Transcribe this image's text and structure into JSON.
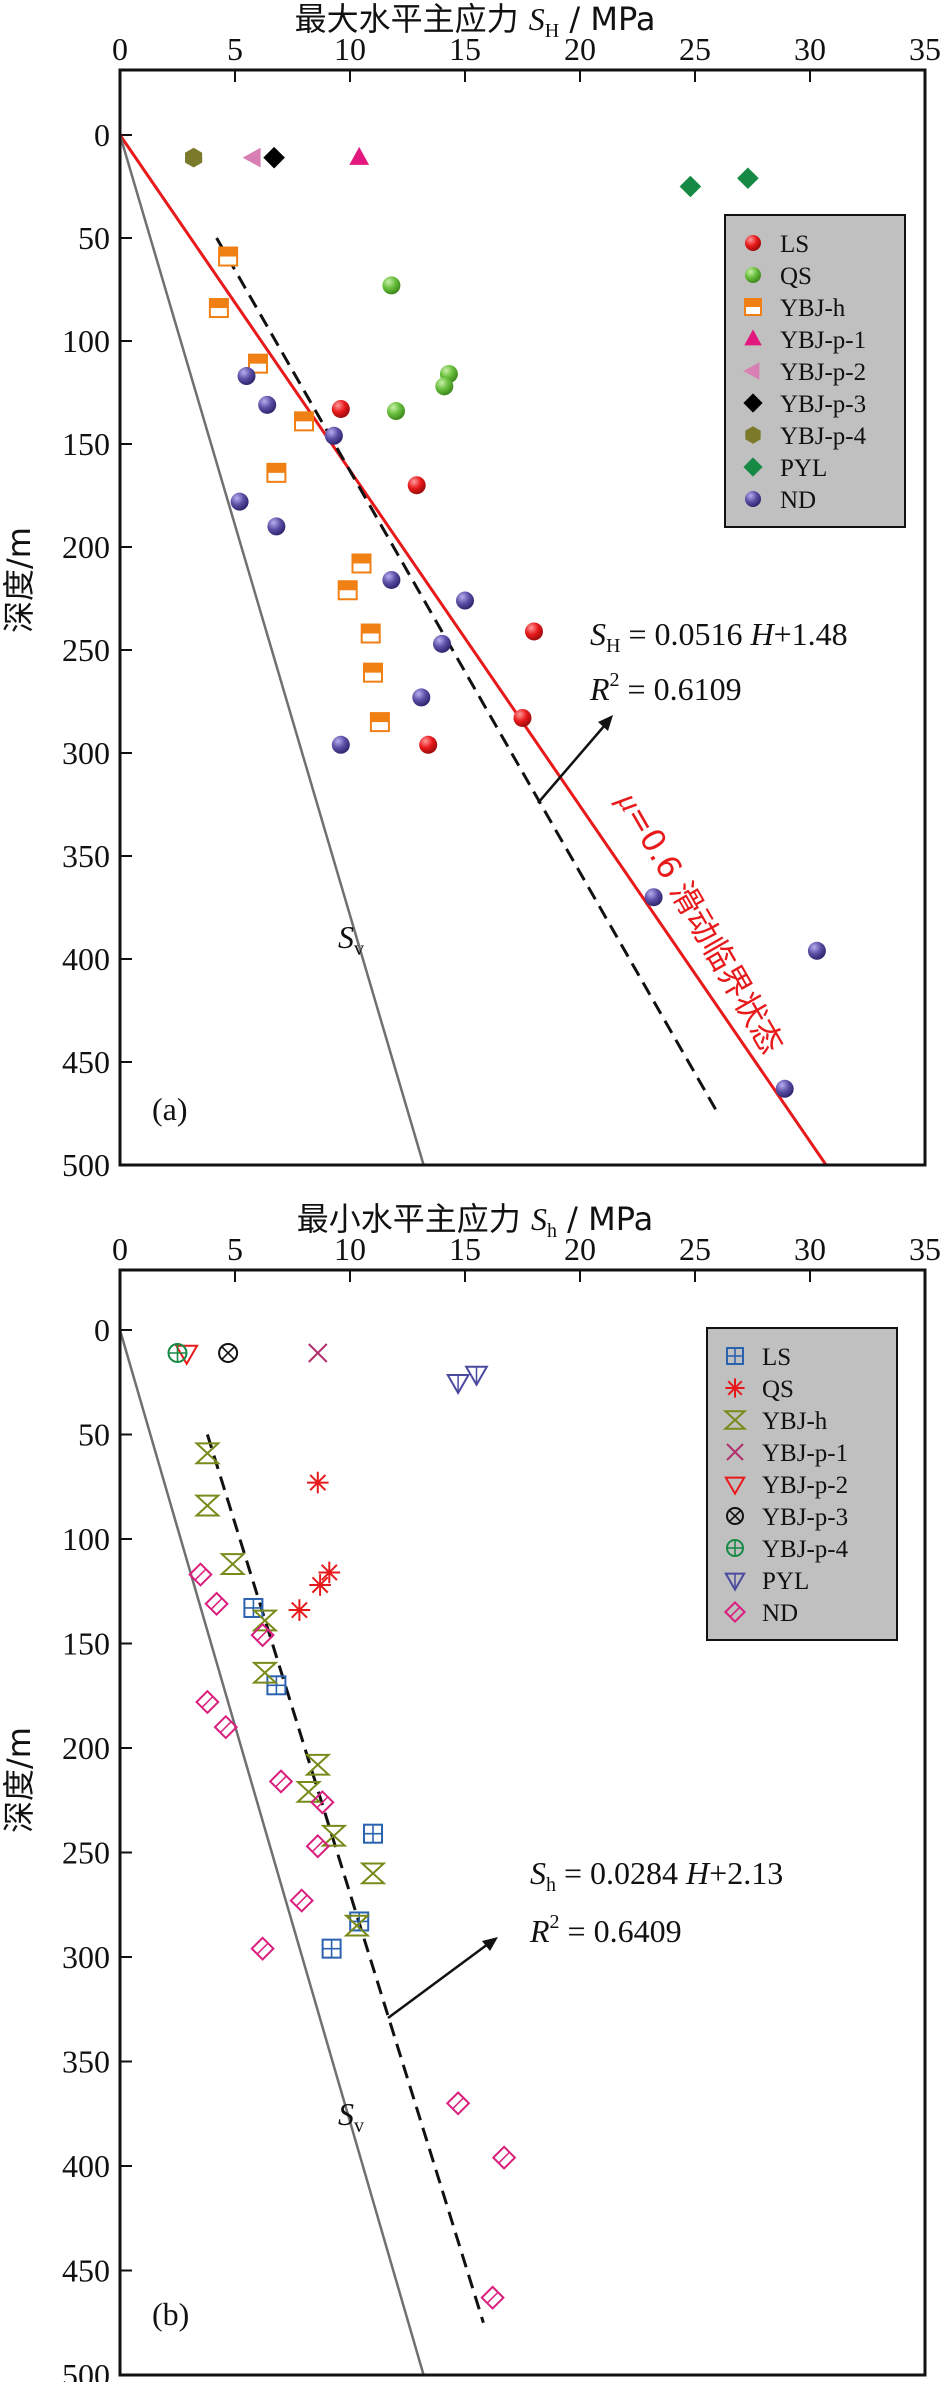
{
  "chart_data": [
    {
      "type": "scatter",
      "panel_label": "(a)",
      "x_title": {
        "main": "最大水平主应力 ",
        "sym": "S",
        "sub": "H",
        "unit": " / MPa"
      },
      "y_title": "深度/m",
      "xlim": [
        0,
        35
      ],
      "ylim": [
        0,
        500
      ],
      "xticks": [
        0,
        5,
        10,
        15,
        20,
        25,
        30,
        35
      ],
      "yticks": [
        0,
        50,
        100,
        150,
        200,
        250,
        300,
        350,
        400,
        450,
        500
      ],
      "y_inverted": true,
      "grid": false,
      "legend_position": "upper-right",
      "series": [
        {
          "name": "LS",
          "marker": "sphere",
          "color": "#e8191b",
          "points": [
            [
              9.6,
              133
            ],
            [
              12.9,
              170
            ],
            [
              13.4,
              296
            ],
            [
              17.5,
              283
            ],
            [
              18.0,
              241
            ]
          ]
        },
        {
          "name": "QS",
          "marker": "sphere",
          "color": "#66bd3a",
          "points": [
            [
              11.8,
              73
            ],
            [
              14.3,
              116
            ],
            [
              14.1,
              122
            ],
            [
              12.0,
              134
            ]
          ]
        },
        {
          "name": "YBJ-h",
          "marker": "half-square",
          "color": "#f07f14",
          "points": [
            [
              4.7,
              59
            ],
            [
              4.3,
              84
            ],
            [
              6.0,
              111
            ],
            [
              8.0,
              139
            ],
            [
              6.8,
              164
            ],
            [
              10.5,
              208
            ],
            [
              9.9,
              221
            ],
            [
              10.9,
              242
            ],
            [
              11.0,
              261
            ],
            [
              11.3,
              285
            ]
          ]
        },
        {
          "name": "YBJ-p-1",
          "marker": "triangle",
          "color": "#e2187f",
          "points": [
            [
              10.4,
              11
            ]
          ]
        },
        {
          "name": "YBJ-p-2",
          "marker": "triangle-left",
          "color": "#d87fb4",
          "points": [
            [
              5.8,
              11
            ]
          ]
        },
        {
          "name": "YBJ-p-3",
          "marker": "diamond",
          "color": "#000000",
          "points": [
            [
              6.7,
              11
            ]
          ]
        },
        {
          "name": "YBJ-p-4",
          "marker": "hexagon",
          "color": "#7a7a2a",
          "points": [
            [
              3.2,
              11
            ]
          ]
        },
        {
          "name": "PYL",
          "marker": "diamond",
          "color": "#168a45",
          "points": [
            [
              24.8,
              25
            ],
            [
              27.3,
              21
            ]
          ]
        },
        {
          "name": "ND",
          "marker": "sphere",
          "color": "#5a4ea4",
          "points": [
            [
              5.5,
              117
            ],
            [
              6.4,
              131
            ],
            [
              9.3,
              146
            ],
            [
              5.2,
              178
            ],
            [
              6.8,
              190
            ],
            [
              11.8,
              216
            ],
            [
              15.0,
              226
            ],
            [
              14.0,
              247
            ],
            [
              13.1,
              273
            ],
            [
              9.6,
              296
            ],
            [
              23.2,
              370
            ],
            [
              30.3,
              396
            ],
            [
              28.9,
              463
            ]
          ]
        }
      ],
      "lines": [
        {
          "name": "mu_0.6",
          "style": "solid",
          "color": "#e8191b",
          "from": [
            0,
            0
          ],
          "to": [
            30.7,
            500
          ]
        },
        {
          "name": "fit",
          "style": "dashed",
          "color": "#111111",
          "from": [
            4.2,
            50
          ],
          "to": [
            26.0,
            475
          ]
        },
        {
          "name": "Sv",
          "style": "solid",
          "color": "#707070",
          "from": [
            0,
            0
          ],
          "to": [
            13.2,
            500
          ]
        }
      ],
      "fit_label": {
        "s1": "S",
        "sub": "H",
        "s2": " = 0.0516 ",
        "s3": "H",
        "s4": "+1.48"
      },
      "r2_label": {
        "s1": "R",
        "sup": "2",
        "s2": " = 0.6109"
      },
      "sv_label": {
        "s1": "S",
        "sub": "v"
      },
      "mu_label": {
        "s1": "μ",
        "s2": "=0.6 滑动临界状态"
      }
    },
    {
      "type": "scatter",
      "panel_label": "(b)",
      "x_title": {
        "main": "最小水平主应力 ",
        "sym": "S",
        "sub": "h",
        "unit": " / MPa"
      },
      "y_title": "深度/m",
      "xlim": [
        0,
        35
      ],
      "ylim": [
        0,
        500
      ],
      "xticks": [
        0,
        5,
        10,
        15,
        20,
        25,
        30,
        35
      ],
      "yticks": [
        0,
        50,
        100,
        150,
        200,
        250,
        300,
        350,
        400,
        450,
        500
      ],
      "y_inverted": true,
      "grid": false,
      "legend_position": "upper-right",
      "series": [
        {
          "name": "LS",
          "marker": "square-plus",
          "color": "#2a62b0",
          "points": [
            [
              5.8,
              133
            ],
            [
              6.8,
              170
            ],
            [
              11.0,
              241
            ],
            [
              10.4,
              283
            ],
            [
              9.2,
              296
            ]
          ]
        },
        {
          "name": "QS",
          "marker": "asterisk",
          "color": "#e8191b",
          "points": [
            [
              8.6,
              73
            ],
            [
              9.1,
              116
            ],
            [
              8.7,
              122
            ],
            [
              7.8,
              134
            ]
          ]
        },
        {
          "name": "YBJ-h",
          "marker": "bowtie",
          "color": "#7a8a1a",
          "points": [
            [
              3.8,
              59
            ],
            [
              3.8,
              84
            ],
            [
              4.9,
              112
            ],
            [
              6.3,
              139
            ],
            [
              6.3,
              164
            ],
            [
              8.6,
              208
            ],
            [
              8.2,
              221
            ],
            [
              9.3,
              242
            ],
            [
              11.0,
              260
            ],
            [
              10.3,
              285
            ]
          ]
        },
        {
          "name": "YBJ-p-1",
          "marker": "x",
          "color": "#b0306e",
          "points": [
            [
              8.6,
              11
            ]
          ]
        },
        {
          "name": "YBJ-p-2",
          "marker": "triangle-down",
          "color": "#e8191b",
          "points": [
            [
              2.9,
              11
            ]
          ]
        },
        {
          "name": "YBJ-p-3",
          "marker": "circle-x",
          "color": "#111111",
          "points": [
            [
              4.7,
              11
            ]
          ]
        },
        {
          "name": "YBJ-p-4",
          "marker": "circle-plus",
          "color": "#168a45",
          "points": [
            [
              2.5,
              11
            ]
          ]
        },
        {
          "name": "PYL",
          "marker": "triangle-down",
          "color": "#4a4aa0",
          "points": [
            [
              14.7,
              25
            ],
            [
              15.5,
              21
            ]
          ]
        },
        {
          "name": "ND",
          "marker": "diamond",
          "color": "#d91e7e",
          "points": [
            [
              3.5,
              117
            ],
            [
              4.2,
              131
            ],
            [
              6.2,
              146
            ],
            [
              3.8,
              178
            ],
            [
              4.6,
              190
            ],
            [
              7.0,
              216
            ],
            [
              8.8,
              226
            ],
            [
              8.6,
              247
            ],
            [
              7.9,
              273
            ],
            [
              6.2,
              296
            ],
            [
              14.7,
              370
            ],
            [
              16.7,
              396
            ],
            [
              16.2,
              463
            ]
          ]
        }
      ],
      "lines": [
        {
          "name": "fit",
          "style": "dashed",
          "color": "#111111",
          "from": [
            3.8,
            50
          ],
          "to": [
            15.8,
            475
          ]
        },
        {
          "name": "Sv",
          "style": "solid",
          "color": "#707070",
          "from": [
            0,
            0
          ],
          "to": [
            13.2,
            500
          ]
        }
      ],
      "fit_label": {
        "s1": "S",
        "sub": "h",
        "s2": " = 0.0284 ",
        "s3": "H",
        "s4": "+2.13"
      },
      "r2_label": {
        "s1": "R",
        "sup": "2",
        "s2": " = 0.6409"
      },
      "sv_label": {
        "s1": "S",
        "sub": "v"
      }
    }
  ]
}
